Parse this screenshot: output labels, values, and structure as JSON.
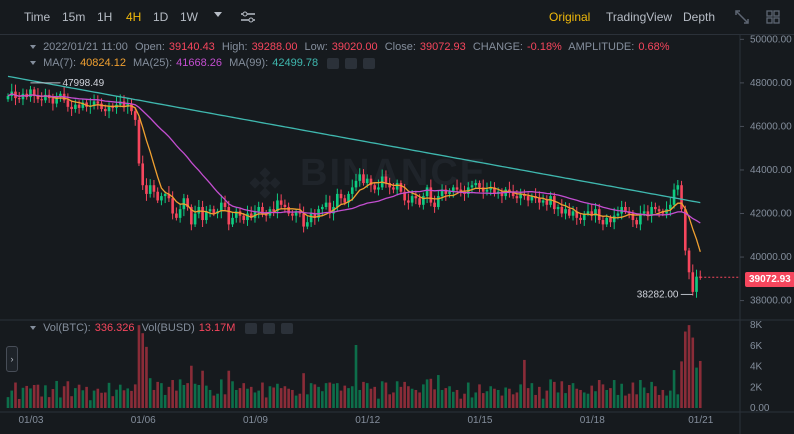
{
  "toolbar": {
    "left": [
      {
        "label": "Time",
        "active": false
      },
      {
        "label": "15m",
        "active": false
      },
      {
        "label": "1H",
        "active": false
      },
      {
        "label": "4H",
        "active": true
      },
      {
        "label": "1D",
        "active": false
      },
      {
        "label": "1W",
        "active": false
      }
    ],
    "right": [
      {
        "label": "Original",
        "active": true
      },
      {
        "label": "TradingView",
        "active": false
      },
      {
        "label": "Depth",
        "active": false
      }
    ],
    "icons": [
      "dropdown-icon",
      "indicator-settings-icon",
      "fullscreen-icon",
      "layout-grid-icon"
    ]
  },
  "ohlc": {
    "date": "2022/01/21 11:00",
    "open_label": "Open:",
    "open": "39140.43",
    "high_label": "High:",
    "high": "39288.00",
    "low_label": "Low:",
    "low": "39020.00",
    "close_label": "Close:",
    "close": "39072.93",
    "change_label": "CHANGE:",
    "change": "-0.18%",
    "amp_label": "AMPLITUDE:",
    "amp": "0.68%"
  },
  "ma": {
    "ma7_label": "MA(7):",
    "ma7": "40824.12",
    "ma25_label": "MA(25):",
    "ma25": "41668.26",
    "ma99_label": "MA(99):",
    "ma99": "42499.78"
  },
  "vol": {
    "btc_label": "Vol(BTC):",
    "btc": "336.326",
    "busd_label": "Vol(BUSD)",
    "busd": "13.17M"
  },
  "price_axis": [
    "50000.00",
    "48000.00",
    "46000.00",
    "44000.00",
    "42000.00",
    "40000.00",
    "38000.00"
  ],
  "vol_axis": [
    "8K",
    "6K",
    "4K",
    "2K",
    "0.00"
  ],
  "date_axis": [
    "01/03",
    "01/06",
    "01/09",
    "01/12",
    "01/15",
    "01/18",
    "01/21"
  ],
  "current_price_tag": "39072.93",
  "high_marker": "47998.49",
  "low_marker": "38282.00",
  "watermark": "BINANCE",
  "side_tab": "›",
  "colors": {
    "up": "#0ecb81",
    "down": "#f6465d",
    "ma7": "#f0a030",
    "ma25": "#c34ed0",
    "ma99": "#3fb8af",
    "accent": "#f0b90b"
  },
  "chart_data": {
    "type": "candlestick",
    "price_range": [
      37200,
      50200
    ],
    "vol_range": [
      0,
      8300
    ],
    "candles_close_path": [
      47400,
      47600,
      47300,
      47250,
      47500,
      47350,
      47700,
      47400,
      47250,
      47200,
      47450,
      47300,
      47050,
      47400,
      47500,
      47200,
      46900,
      46800,
      47000,
      46850,
      47100,
      46900,
      46950,
      47150,
      47050,
      46800,
      46700,
      46950,
      46850,
      47000,
      47150,
      46900,
      47050,
      46700,
      46300,
      44300,
      43300,
      42900,
      43300,
      43000,
      42600,
      42800,
      42900,
      42700,
      42000,
      41800,
      42200,
      42700,
      42300,
      41500,
      42000,
      42300,
      41700,
      42100,
      42200,
      42000,
      42100,
      42500,
      42300,
      41500,
      41800,
      42100,
      41900,
      41700,
      42000,
      41800,
      42100,
      42300,
      42000,
      41900,
      42200,
      42100,
      42600,
      42400,
      42300,
      42000,
      41900,
      42100,
      42000,
      41400,
      41600,
      42000,
      41800,
      42200,
      42300,
      42500,
      42000,
      42300,
      42900,
      42700,
      42500,
      42900,
      43200,
      43500,
      43800,
      43400,
      43600,
      43300,
      43100,
      43200,
      43700,
      43400,
      43200,
      43100,
      43400,
      43000,
      42600,
      42500,
      42800,
      42700,
      42400,
      42800,
      43200,
      42500,
      42300,
      42800,
      43100,
      42900,
      43000,
      43200,
      43100,
      43000,
      42900,
      43200,
      43300,
      43400,
      43200,
      43000,
      43100,
      43200,
      42900,
      43000,
      42800,
      43100,
      43000,
      42800,
      42700,
      42900,
      42800,
      42600,
      42800,
      42700,
      42500,
      42600,
      42400,
      42800,
      42200,
      42300,
      42000,
      42200,
      41900,
      42100,
      41800,
      41700,
      42000,
      42100,
      41900,
      42200,
      41700,
      41500,
      41800,
      41600,
      41900,
      42000,
      42300,
      42100,
      42000,
      41700,
      41500,
      42000,
      42100,
      41900,
      42300,
      42200,
      42100,
      42000,
      42200,
      42400,
      43100,
      43300,
      42200,
      40300,
      39300,
      38400,
      39100,
      39073
    ]
  }
}
